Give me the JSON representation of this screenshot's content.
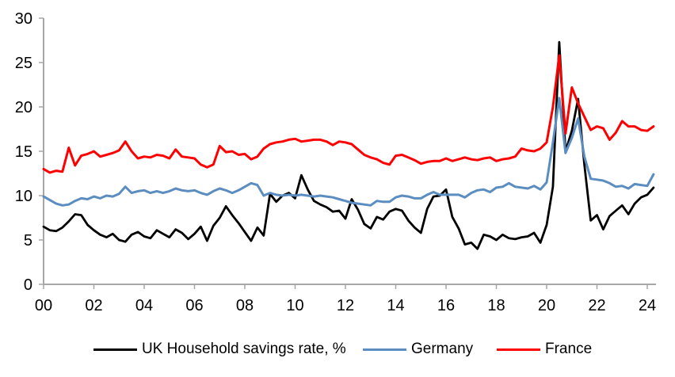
{
  "figure": {
    "background_color": "#FFFFFF",
    "axis_color": "#A6A6A6",
    "text_color": "#000000"
  },
  "chart_data": {
    "type": "line",
    "title": "",
    "xlabel": "",
    "ylabel": "",
    "x_unit": "quarterly",
    "x_start_year": 2000,
    "x_end_year_fraction": 2024.25,
    "x_tick_labels": [
      "00",
      "02",
      "04",
      "06",
      "08",
      "10",
      "12",
      "14",
      "16",
      "18",
      "20",
      "22",
      "24"
    ],
    "x_tick_year_offsets": [
      0,
      2,
      4,
      6,
      8,
      10,
      12,
      14,
      16,
      18,
      20,
      22,
      24
    ],
    "y_ticks": [
      0,
      5,
      10,
      15,
      20,
      25,
      30
    ],
    "y_tick_labels": [
      "0",
      "5",
      "10",
      "15",
      "20",
      "25",
      "30"
    ],
    "ylim": [
      0,
      30
    ],
    "grid": "off",
    "legend_position": "bottom",
    "series": [
      {
        "name": "UK Household savings rate, %",
        "color": "#000000",
        "stroke_width": 2.8,
        "values": [
          6.5,
          6.1,
          6.0,
          6.4,
          7.1,
          7.9,
          7.8,
          6.7,
          6.1,
          5.6,
          5.3,
          5.7,
          5.0,
          4.8,
          5.6,
          5.9,
          5.4,
          5.2,
          6.1,
          5.7,
          5.3,
          6.2,
          5.8,
          5.1,
          5.7,
          6.5,
          4.9,
          6.6,
          7.5,
          8.8,
          7.8,
          6.9,
          5.9,
          4.9,
          6.4,
          5.5,
          10.2,
          9.3,
          10.0,
          10.3,
          9.7,
          12.3,
          10.7,
          9.4,
          9.0,
          8.7,
          8.2,
          8.3,
          7.4,
          9.6,
          8.4,
          6.8,
          6.3,
          7.6,
          7.3,
          8.2,
          8.5,
          8.3,
          7.2,
          6.4,
          5.8,
          8.5,
          9.9,
          10.0,
          10.7,
          7.6,
          6.3,
          4.5,
          4.7,
          4.0,
          5.6,
          5.4,
          5.0,
          5.6,
          5.2,
          5.1,
          5.3,
          5.4,
          5.8,
          4.7,
          6.7,
          11.0,
          27.3,
          15.0,
          17.3,
          20.9,
          13.5,
          7.2,
          7.8,
          6.2,
          7.7,
          8.3,
          8.9,
          7.9,
          9.1,
          9.8,
          10.1,
          10.9
        ]
      },
      {
        "name": "Germany",
        "color": "#5B8DC0",
        "stroke_width": 3,
        "values": [
          9.9,
          9.5,
          9.1,
          8.9,
          9.0,
          9.4,
          9.7,
          9.6,
          9.9,
          9.7,
          10.0,
          9.9,
          10.2,
          11.0,
          10.3,
          10.5,
          10.6,
          10.3,
          10.5,
          10.3,
          10.5,
          10.8,
          10.6,
          10.5,
          10.6,
          10.3,
          10.1,
          10.5,
          10.8,
          10.6,
          10.3,
          10.6,
          11.0,
          11.4,
          11.2,
          10.0,
          10.3,
          10.1,
          10.0,
          10.1,
          10.0,
          10.1,
          10.0,
          9.9,
          10.0,
          9.9,
          9.8,
          9.6,
          9.4,
          9.2,
          9.1,
          9.0,
          8.9,
          9.4,
          9.3,
          9.3,
          9.8,
          10.0,
          9.9,
          9.7,
          9.7,
          10.1,
          10.4,
          10.1,
          10.1,
          10.1,
          10.1,
          9.8,
          10.3,
          10.6,
          10.7,
          10.4,
          10.9,
          11.0,
          11.4,
          11.0,
          10.9,
          10.8,
          11.1,
          10.7,
          11.5,
          16.0,
          21.0,
          14.8,
          16.5,
          18.7,
          14.4,
          11.9,
          11.8,
          11.7,
          11.4,
          11.0,
          11.1,
          10.8,
          11.3,
          11.2,
          11.1,
          12.4
        ]
      },
      {
        "name": "France",
        "color": "#FF0000",
        "stroke_width": 3,
        "values": [
          13.0,
          12.6,
          12.8,
          12.7,
          15.4,
          13.4,
          14.5,
          14.7,
          15.0,
          14.4,
          14.6,
          14.8,
          15.1,
          16.1,
          15.0,
          14.2,
          14.4,
          14.3,
          14.6,
          14.5,
          14.2,
          15.2,
          14.4,
          14.3,
          14.2,
          13.5,
          13.2,
          13.5,
          15.6,
          14.9,
          15.0,
          14.6,
          14.7,
          14.1,
          14.4,
          15.3,
          15.8,
          16.0,
          16.1,
          16.3,
          16.4,
          16.1,
          16.2,
          16.3,
          16.3,
          16.1,
          15.7,
          16.1,
          16.0,
          15.8,
          15.2,
          14.6,
          14.3,
          14.1,
          13.7,
          13.5,
          14.5,
          14.6,
          14.3,
          14.0,
          13.6,
          13.8,
          13.9,
          13.9,
          14.2,
          13.9,
          14.1,
          14.3,
          14.1,
          14.0,
          14.2,
          14.3,
          13.9,
          14.1,
          14.2,
          14.4,
          15.3,
          15.1,
          15.0,
          15.3,
          16.0,
          20.0,
          25.8,
          17.0,
          22.2,
          20.4,
          18.9,
          17.4,
          17.8,
          17.6,
          16.3,
          17.1,
          18.4,
          17.8,
          17.8,
          17.4,
          17.3,
          17.8
        ]
      }
    ]
  },
  "legend": {
    "items": [
      {
        "label": "UK Household savings rate, %"
      },
      {
        "label": "Germany"
      },
      {
        "label": "France"
      }
    ]
  }
}
